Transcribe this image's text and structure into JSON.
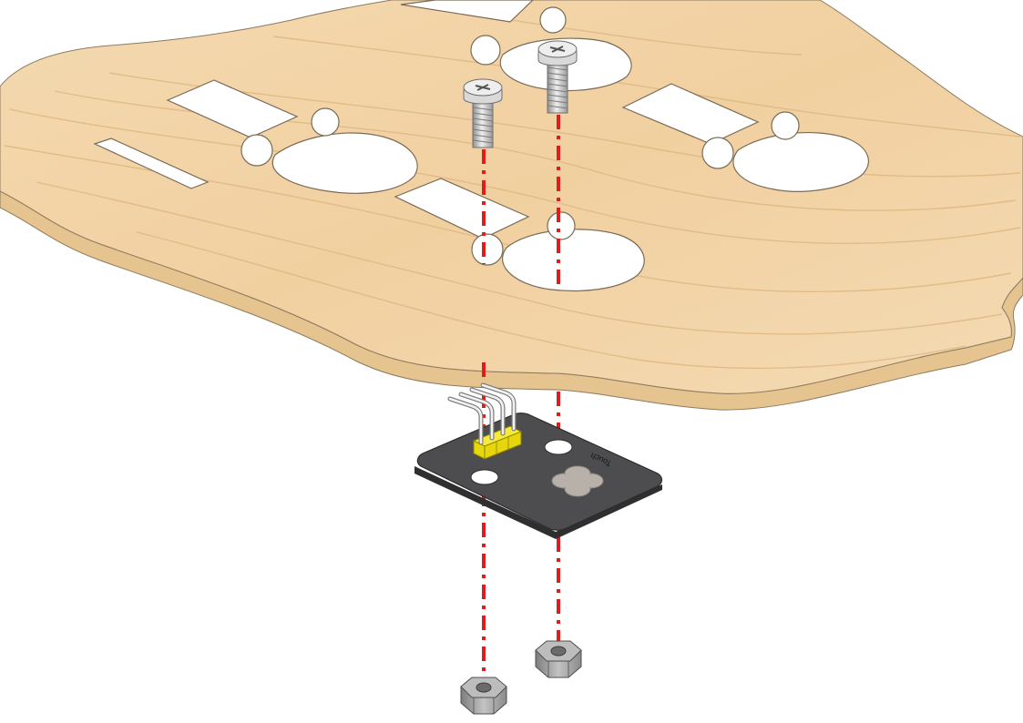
{
  "diagram": {
    "kind": "exploded-assembly",
    "parts": [
      {
        "id": "wooden-base-plate",
        "material": "plywood"
      },
      {
        "id": "screw-1",
        "type": "phillips pan-head screw"
      },
      {
        "id": "screw-2",
        "type": "phillips pan-head screw"
      },
      {
        "id": "touch-sensor-module",
        "type": "sensor board"
      },
      {
        "id": "hex-nut-1",
        "type": "hex nut"
      },
      {
        "id": "hex-nut-2",
        "type": "hex nut"
      }
    ],
    "module_label": "Touch",
    "colors": {
      "wood": "#f2d3a6",
      "wood_edge": "#e8c28e",
      "wood_grain": "#d9b27c",
      "board": "#4d4d4f",
      "header": "#f2e317",
      "pad": "#b8b1a9",
      "axis": "#e21b1b",
      "metal": "#c9c9c9"
    }
  }
}
